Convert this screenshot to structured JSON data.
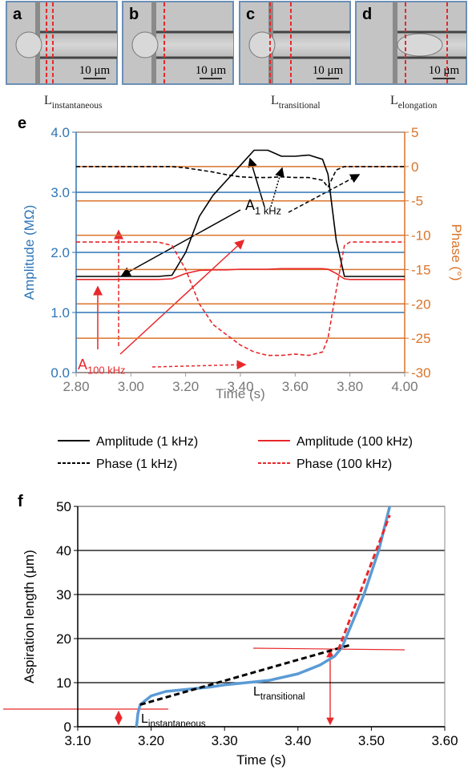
{
  "panels_top": {
    "letters": [
      "a",
      "b",
      "c",
      "d"
    ],
    "scale_bar": "10 μm",
    "length_labels": [
      {
        "text": "L",
        "sub": "instantaneous"
      },
      {
        "text": "L",
        "sub": "transitional"
      },
      {
        "text": "L",
        "sub": "elongation"
      }
    ]
  },
  "chart_data": [
    {
      "type": "line",
      "panel": "e",
      "x_label": "Time (s)",
      "y_label": "Amplitude (MΩ)",
      "y2_label": "Phase (°)",
      "x": [
        2.8,
        2.9,
        3.0,
        3.1,
        3.15,
        3.2,
        3.25,
        3.3,
        3.35,
        3.4,
        3.45,
        3.5,
        3.55,
        3.6,
        3.65,
        3.7,
        3.72,
        3.75,
        3.78,
        3.8,
        3.9,
        4.0
      ],
      "series": [
        {
          "name": "Amplitude (1 kHz)",
          "color": "#000000",
          "dash": "solid",
          "values": [
            1.6,
            1.6,
            1.6,
            1.6,
            1.62,
            2.0,
            2.6,
            2.95,
            3.2,
            3.45,
            3.7,
            3.7,
            3.6,
            3.6,
            3.62,
            3.55,
            3.3,
            2.2,
            1.6,
            1.6,
            1.6,
            1.6
          ]
        },
        {
          "name": "Amplitude (100 kHz)",
          "color": "#e8282b",
          "dash": "solid",
          "values": [
            1.55,
            1.55,
            1.55,
            1.55,
            1.56,
            1.65,
            1.7,
            1.71,
            1.71,
            1.72,
            1.72,
            1.72,
            1.73,
            1.73,
            1.73,
            1.73,
            1.72,
            1.65,
            1.56,
            1.55,
            1.55,
            1.55
          ]
        },
        {
          "name": "Phase (1 kHz)",
          "color": "#000000",
          "dash": "dashed",
          "axis": "y2",
          "values": [
            0,
            0,
            0,
            0,
            0,
            -0.2,
            -0.5,
            -0.8,
            -1.2,
            -1.5,
            -1.6,
            -1.6,
            -1.5,
            -1.6,
            -1.6,
            -2,
            -3,
            -0.5,
            0,
            0,
            0,
            0
          ]
        },
        {
          "name": "Phase (100 kHz)",
          "color": "#e8282b",
          "dash": "dashed",
          "axis": "y2",
          "values": [
            -11,
            -11,
            -11,
            -11,
            -11.5,
            -15,
            -20,
            -23,
            -24.5,
            -26,
            -27,
            -27.5,
            -27.5,
            -27.3,
            -27.5,
            -27,
            -25,
            -18,
            -11.5,
            -11,
            -11,
            -11
          ]
        }
      ],
      "xlim": [
        2.8,
        4.0
      ],
      "xticks": [
        {
          "value": 2.8,
          "label": "2.80"
        },
        {
          "value": 3.0,
          "label": "3.00"
        },
        {
          "value": 3.2,
          "label": "3.20"
        },
        {
          "value": 3.4,
          "label": "3.40"
        },
        {
          "value": 3.6,
          "label": "3.60"
        },
        {
          "value": 3.8,
          "label": "3.80"
        },
        {
          "value": 4.0,
          "label": "4.00"
        }
      ],
      "ylim": [
        0,
        4
      ],
      "yticks": [
        {
          "value": 0,
          "label": "0.0"
        },
        {
          "value": 1,
          "label": "1.0"
        },
        {
          "value": 2,
          "label": "2.0"
        },
        {
          "value": 3,
          "label": "3.0"
        },
        {
          "value": 4,
          "label": "4.0"
        }
      ],
      "y2lim": [
        -30,
        5
      ],
      "y2ticks": [
        5,
        0,
        -5,
        -10,
        -15,
        -20,
        -25,
        -30
      ],
      "y_color": "#2e75b6",
      "y2_color": "#d9742b",
      "grid": true,
      "annotations": [
        {
          "text": "A",
          "sub": "1 kHz",
          "color": "#000000"
        },
        {
          "text": "A",
          "sub": "100 kHz",
          "color": "#e8282b"
        }
      ]
    },
    {
      "type": "line",
      "panel": "f",
      "x_label": "Time (s)",
      "y_label": "Aspiration length (μm)",
      "series": [
        {
          "color": "#5b9bd5",
          "dash": "solid",
          "x": [
            3.18,
            3.182,
            3.185,
            3.2,
            3.22,
            3.25,
            3.28,
            3.3,
            3.33,
            3.36,
            3.4,
            3.43,
            3.45,
            3.46,
            3.47,
            3.48,
            3.49,
            3.5,
            3.51,
            3.525
          ],
          "values": [
            0,
            3,
            5,
            7,
            8,
            8.5,
            9,
            9.5,
            10,
            10.5,
            12,
            14,
            16,
            18,
            22,
            26,
            30,
            35,
            40,
            50
          ]
        },
        {
          "color": "#000000",
          "dash": "dashed",
          "x": [
            3.185,
            3.47
          ],
          "values": [
            5,
            18.5
          ]
        },
        {
          "color": "#e8282b",
          "dash": "dashed",
          "x": [
            3.455,
            3.525
          ],
          "values": [
            17.5,
            48
          ]
        }
      ],
      "xlim": [
        3.1,
        3.6
      ],
      "xticks": [
        {
          "value": 3.1,
          "label": "3.10"
        },
        {
          "value": 3.2,
          "label": "3.20"
        },
        {
          "value": 3.3,
          "label": "3.30"
        },
        {
          "value": 3.4,
          "label": "3.40"
        },
        {
          "value": 3.5,
          "label": "3.50"
        },
        {
          "value": 3.6,
          "label": "3.60"
        }
      ],
      "ylim": [
        0,
        50
      ],
      "yticks": [
        0,
        10,
        20,
        30,
        40,
        50
      ],
      "grid": true,
      "annotations": [
        {
          "text": "L",
          "sub": "transitional",
          "color": "#000000"
        },
        {
          "text": "L",
          "sub": "instantaneous",
          "color": "#000000"
        }
      ]
    }
  ]
}
